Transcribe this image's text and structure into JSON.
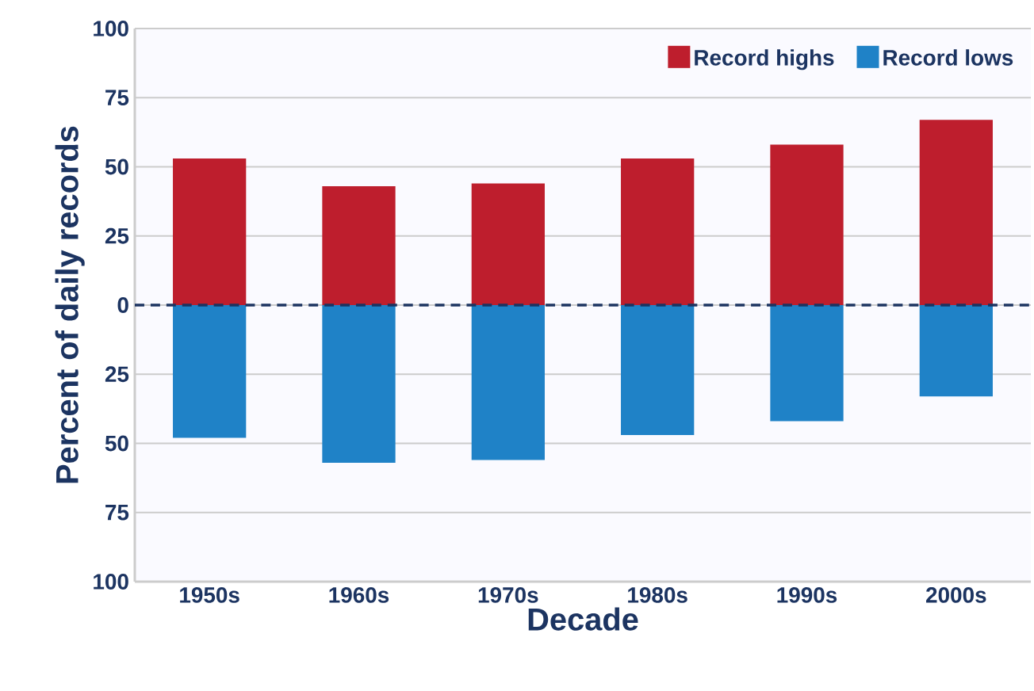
{
  "chart_data": {
    "type": "bar",
    "xlabel": "Decade",
    "ylabel": "Percent of daily records",
    "categories": [
      "1950s",
      "1960s",
      "1970s",
      "1980s",
      "1990s",
      "2000s"
    ],
    "series": [
      {
        "name": "Record highs",
        "color": "#be1e2d",
        "values": [
          53,
          43,
          44,
          53,
          58,
          67
        ]
      },
      {
        "name": "Record lows",
        "color": "#1f82c7",
        "values": [
          -48,
          -57,
          -56,
          -47,
          -42,
          -33
        ]
      }
    ],
    "ylim": [
      -100,
      100
    ],
    "yticks": [
      {
        "value": -100,
        "label": "100"
      },
      {
        "value": -75,
        "label": "75"
      },
      {
        "value": -50,
        "label": "50"
      },
      {
        "value": -25,
        "label": "25"
      },
      0,
      25,
      50,
      75,
      100
    ],
    "ref_lines": [
      {
        "axis": "y",
        "value": 0,
        "color": "#1c3461",
        "line_style": "dashed"
      }
    ],
    "grid": "y",
    "legend": "top right",
    "stacked": true
  }
}
